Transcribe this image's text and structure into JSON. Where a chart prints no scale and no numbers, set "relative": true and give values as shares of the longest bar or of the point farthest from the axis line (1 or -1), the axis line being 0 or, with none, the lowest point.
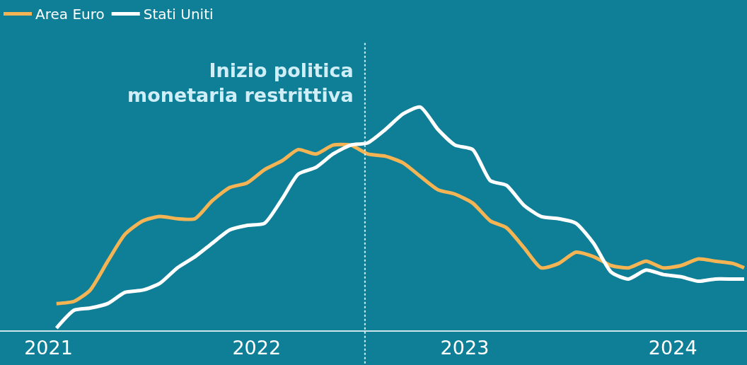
{
  "chart_data": {
    "type": "line",
    "relative": true,
    "x": [
      "2021-01-15",
      "2021-02-15",
      "2021-03-15",
      "2021-04-15",
      "2021-05-15",
      "2021-06-15",
      "2021-07-15",
      "2021-08-15",
      "2021-09-15",
      "2021-10-15",
      "2021-11-15",
      "2021-12-15",
      "2022-01-15",
      "2022-02-15",
      "2022-03-15",
      "2022-04-15",
      "2022-05-15",
      "2022-06-15",
      "2022-07-15",
      "2022-08-15",
      "2022-09-15",
      "2022-10-15",
      "2022-11-15",
      "2022-12-15",
      "2023-01-15",
      "2023-02-15",
      "2023-03-15",
      "2023-04-15",
      "2023-05-15",
      "2023-06-15",
      "2023-07-15",
      "2023-08-15",
      "2023-09-15",
      "2023-10-15",
      "2023-11-15",
      "2023-12-15",
      "2024-01-15",
      "2024-02-15",
      "2024-03-15",
      "2024-04-15",
      "2024-05-05"
    ],
    "series": [
      {
        "name": "Area Euro",
        "color": "#f5b454",
        "values": [
          0.12,
          0.13,
          0.18,
          0.31,
          0.43,
          0.49,
          0.51,
          0.5,
          0.5,
          0.58,
          0.64,
          0.66,
          0.72,
          0.76,
          0.81,
          0.79,
          0.83,
          0.83,
          0.79,
          0.78,
          0.75,
          0.69,
          0.63,
          0.61,
          0.57,
          0.49,
          0.46,
          0.37,
          0.28,
          0.3,
          0.35,
          0.33,
          0.29,
          0.28,
          0.31,
          0.28,
          0.29,
          0.32,
          0.31,
          0.3,
          0.28
        ]
      },
      {
        "name": "Stati Uniti",
        "color": "#ffffff",
        "values": [
          0.01,
          0.09,
          0.1,
          0.12,
          0.17,
          0.18,
          0.21,
          0.28,
          0.33,
          0.39,
          0.45,
          0.47,
          0.48,
          0.59,
          0.7,
          0.73,
          0.79,
          0.83,
          0.84,
          0.9,
          0.97,
          1.0,
          0.9,
          0.83,
          0.81,
          0.67,
          0.65,
          0.56,
          0.51,
          0.5,
          0.48,
          0.39,
          0.26,
          0.23,
          0.27,
          0.25,
          0.24,
          0.22,
          0.23,
          0.23,
          0.23
        ]
      }
    ],
    "xlim": [
      "2020-10-08",
      "2024-05-10"
    ],
    "xticks": [
      {
        "value": "2021-01-01",
        "label": "2021"
      },
      {
        "value": "2022-01-01",
        "label": "2022"
      },
      {
        "value": "2023-01-01",
        "label": "2023"
      },
      {
        "value": "2024-01-01",
        "label": "2024"
      }
    ],
    "ref_lines": [
      {
        "axis": "x",
        "value": "2022-07-10",
        "label": "Inizio politica\nmonetaria restrittiva",
        "color": "#cfeef7",
        "line_style": "dotted"
      }
    ],
    "legend": "top left",
    "grid": false,
    "marker": "none",
    "line_style": "solid",
    "tick_labels": "x"
  }
}
